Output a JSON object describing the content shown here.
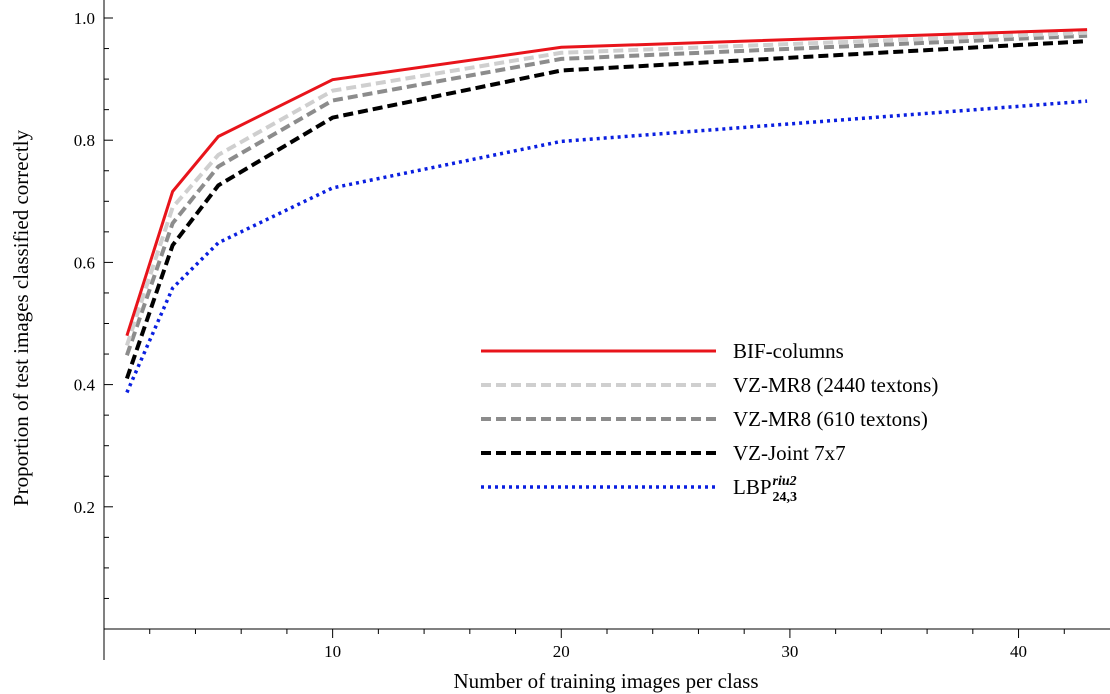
{
  "chart_data": {
    "type": "line",
    "title": "",
    "xlabel": "Number of training images per class",
    "ylabel": "Proportion of test images classified correctly",
    "xlim": [
      0,
      44
    ],
    "ylim": [
      0,
      1.0
    ],
    "xticks": [
      10,
      20,
      30,
      40
    ],
    "xtick_labels": [
      "10",
      "20",
      "30",
      "40"
    ],
    "yticks": [
      0.2,
      0.4,
      0.6,
      0.8,
      1.0
    ],
    "ytick_labels": [
      "0.2",
      "0.4",
      "0.6",
      "0.8",
      "1.0"
    ],
    "grid": false,
    "legend_position": "center-right",
    "x": [
      1,
      3,
      5,
      10,
      20,
      43
    ],
    "series": [
      {
        "name": "BIF-columns",
        "values": [
          0.48,
          0.716,
          0.806,
          0.899,
          0.952,
          0.981
        ],
        "color": "#e8141b",
        "style": "solid"
      },
      {
        "name": "VZ-MR8 (2440 textons)",
        "values": [
          0.464,
          0.69,
          0.776,
          0.881,
          0.943,
          0.976
        ],
        "color": "#cfcfcf",
        "style": "dashed"
      },
      {
        "name": "VZ-MR8 (610 textons)",
        "values": [
          0.448,
          0.664,
          0.757,
          0.865,
          0.933,
          0.971
        ],
        "color": "#8c8c8c",
        "style": "dashed"
      },
      {
        "name": "VZ-Joint 7x7",
        "values": [
          0.41,
          0.628,
          0.726,
          0.837,
          0.914,
          0.962
        ],
        "color": "#000000",
        "style": "dashed"
      },
      {
        "name": "LBP",
        "name_sub": "24,3",
        "name_sup": "riu2",
        "values": [
          0.387,
          0.558,
          0.632,
          0.722,
          0.798,
          0.864
        ],
        "color": "#0a1fe0",
        "style": "dotted"
      }
    ]
  }
}
